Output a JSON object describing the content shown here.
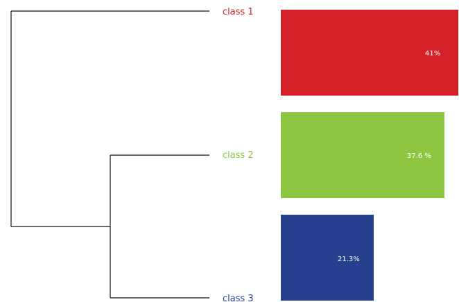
{
  "classes": [
    {
      "label": "class 1",
      "color": "#d42128",
      "value": 41.0,
      "value_label": "41%"
    },
    {
      "label": "class 2",
      "color": "#8fc641",
      "value": 37.6,
      "value_label": "37.6 %"
    },
    {
      "label": "class 3",
      "color": "#263f8e",
      "value": 21.3,
      "value_label": "21.3%"
    }
  ],
  "chart_data": {
    "type": "bar",
    "orientation": "horizontal",
    "categories": [
      "class 1",
      "class 2",
      "class 3"
    ],
    "values": [
      41.0,
      37.6,
      21.3
    ],
    "unit": "%",
    "data_labels": [
      "41%",
      "37.6 %",
      "21.3%"
    ],
    "grid": false,
    "legend": "none"
  },
  "dendrogram": {
    "leaves": [
      "class 1",
      "class 2",
      "class 3"
    ],
    "merges": [
      [
        "class 2",
        "class 3"
      ],
      [
        "class 1",
        "class 2+class 3"
      ]
    ]
  }
}
